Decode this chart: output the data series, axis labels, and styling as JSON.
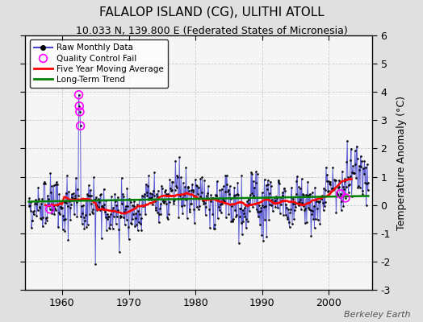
{
  "title": "FALALOP ISLAND (CG), ULITHI ATOLL",
  "subtitle": "10.033 N, 139.800 E (Federated States of Micronesia)",
  "ylabel": "Temperature Anomaly (°C)",
  "attribution": "Berkeley Earth",
  "start_year": 1955,
  "end_year": 2006,
  "ylim": [
    -3,
    6
  ],
  "yticks": [
    -3,
    -2,
    -1,
    0,
    1,
    2,
    3,
    4,
    5,
    6
  ],
  "xticks": [
    1960,
    1970,
    1980,
    1990,
    2000
  ],
  "fig_bg": "#e0e0e0",
  "plot_bg": "#f5f5f5",
  "raw_color": "#4444cc",
  "qc_color": "#ff00ff",
  "moving_avg_color": "red",
  "trend_color": "green",
  "title_fontsize": 11,
  "subtitle_fontsize": 9,
  "tick_fontsize": 9,
  "ylabel_fontsize": 9
}
